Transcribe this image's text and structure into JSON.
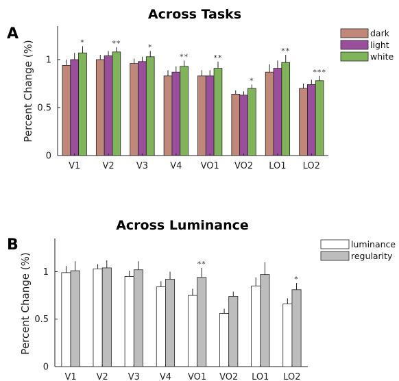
{
  "chart_data": [
    {
      "type": "bar",
      "panel": "A",
      "title": "Across Tasks",
      "xlabel": "",
      "ylabel": "Percent Change (%)",
      "ylim": [
        0,
        1.35
      ],
      "yticks": [
        0,
        0.5,
        1
      ],
      "categories": [
        "V1",
        "V2",
        "V3",
        "V4",
        "VO1",
        "VO2",
        "LO1",
        "LO2"
      ],
      "series": [
        {
          "name": "dark",
          "color": "#c08878",
          "values": [
            0.94,
            1.0,
            0.96,
            0.83,
            0.83,
            0.64,
            0.87,
            0.7
          ],
          "errors": [
            0.06,
            0.05,
            0.05,
            0.06,
            0.06,
            0.04,
            0.08,
            0.05
          ]
        },
        {
          "name": "light",
          "color": "#9a4f9c",
          "values": [
            1.0,
            1.04,
            0.98,
            0.87,
            0.83,
            0.63,
            0.91,
            0.74
          ],
          "errors": [
            0.07,
            0.05,
            0.05,
            0.06,
            0.06,
            0.04,
            0.08,
            0.05
          ]
        },
        {
          "name": "white",
          "color": "#80b45a",
          "values": [
            1.07,
            1.08,
            1.03,
            0.93,
            0.91,
            0.7,
            0.97,
            0.78
          ],
          "errors": [
            0.07,
            0.05,
            0.06,
            0.06,
            0.07,
            0.04,
            0.08,
            0.05
          ]
        }
      ],
      "significance": [
        "*",
        "**",
        "*",
        "**",
        "**",
        "*",
        "**",
        "***"
      ],
      "legend_position": "top-right",
      "grid": false
    },
    {
      "type": "bar",
      "panel": "B",
      "title": "Across Luminance",
      "xlabel": "",
      "ylabel": "Percent Change (%)",
      "ylim": [
        0,
        1.35
      ],
      "yticks": [
        0,
        0.5,
        1
      ],
      "categories": [
        "V1",
        "V2",
        "V3",
        "V4",
        "VO1",
        "VO2",
        "LO1",
        "LO2"
      ],
      "series": [
        {
          "name": "luminance",
          "color": "#ffffff",
          "values": [
            0.99,
            1.03,
            0.95,
            0.84,
            0.75,
            0.56,
            0.85,
            0.66
          ],
          "errors": [
            0.07,
            0.05,
            0.06,
            0.06,
            0.07,
            0.05,
            0.09,
            0.06
          ]
        },
        {
          "name": "regularity",
          "color": "#bdbdbd",
          "values": [
            1.01,
            1.04,
            1.02,
            0.92,
            0.94,
            0.74,
            0.97,
            0.81
          ],
          "errors": [
            0.1,
            0.08,
            0.09,
            0.08,
            0.1,
            0.05,
            0.13,
            0.07
          ]
        }
      ],
      "significance": [
        "",
        "",
        "",
        "",
        "**",
        "",
        "",
        "*"
      ],
      "legend_position": "top-right",
      "grid": false
    }
  ]
}
